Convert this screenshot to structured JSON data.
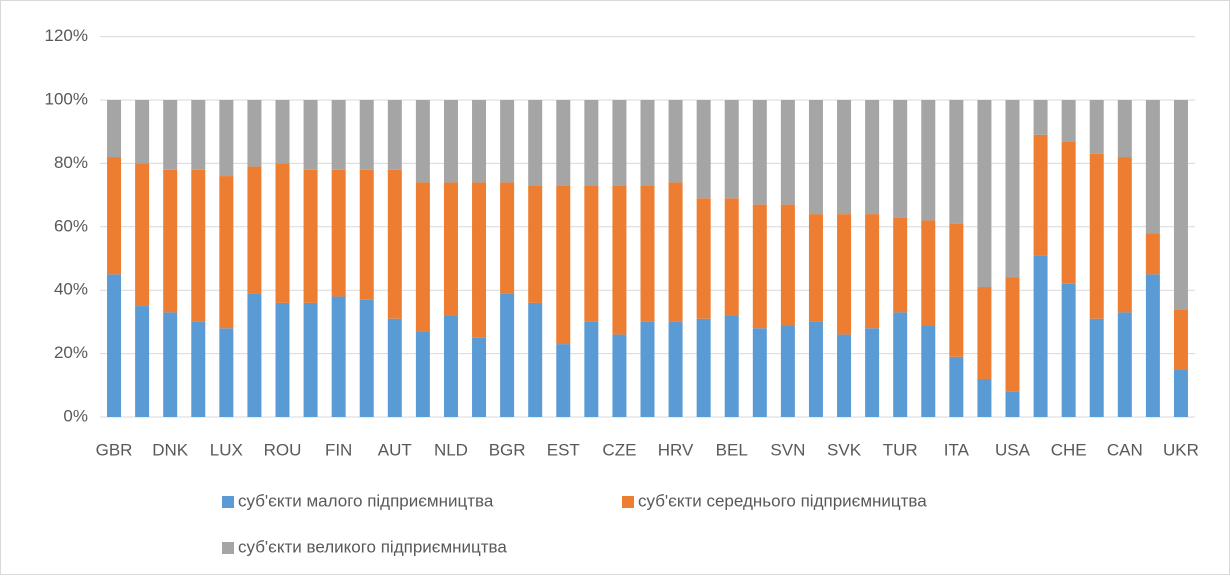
{
  "chart_data": {
    "type": "stacked_bar",
    "categories": [
      "GBR",
      null,
      "DNK",
      null,
      "LUX",
      null,
      "ROU",
      null,
      "FIN",
      null,
      "AUT",
      null,
      "NLD",
      null,
      "BGR",
      null,
      "EST",
      null,
      "CZE",
      null,
      "HRV",
      null,
      "BEL",
      null,
      "SVN",
      null,
      "SVK",
      null,
      "TUR",
      null,
      "ITA",
      null,
      "USA",
      null,
      "CHE",
      null,
      "CAN",
      null,
      "UKR"
    ],
    "series": [
      {
        "name": "суб'єкти малого підприємництва",
        "color": "#5b9bd5",
        "values": [
          45,
          35,
          33,
          30,
          28,
          39,
          36,
          36,
          38,
          37,
          31,
          27,
          32,
          25,
          39,
          36,
          23,
          30,
          26,
          30,
          30,
          31,
          32,
          28,
          29,
          30,
          26,
          28,
          33,
          29,
          19,
          12,
          8,
          51,
          42,
          31,
          33,
          45,
          15
        ]
      },
      {
        "name": "суб'єкти середнього підприємництва",
        "color": "#ed7d31",
        "values": [
          37,
          45,
          45,
          48,
          48,
          40,
          44,
          42,
          40,
          41,
          47,
          47,
          42,
          49,
          35,
          37,
          50,
          43,
          47,
          43,
          44,
          38,
          37,
          39,
          38,
          34,
          38,
          36,
          30,
          33,
          42,
          29,
          36,
          38,
          45,
          52,
          49,
          13,
          19
        ]
      },
      {
        "name": "суб'єкти великого підприємництва",
        "color": "#a5a5a5",
        "values": [
          18,
          20,
          22,
          22,
          24,
          21,
          20,
          22,
          22,
          22,
          22,
          26,
          26,
          26,
          26,
          27,
          27,
          27,
          27,
          27,
          26,
          31,
          31,
          33,
          33,
          36,
          36,
          36,
          37,
          38,
          39,
          59,
          56,
          11,
          13,
          17,
          18,
          42,
          66
        ]
      }
    ],
    "ylim": [
      0,
      120
    ],
    "yticks": [
      {
        "value": 0,
        "label": "0%"
      },
      {
        "value": 20,
        "label": "20%"
      },
      {
        "value": 40,
        "label": "40%"
      },
      {
        "value": 60,
        "label": "60%"
      },
      {
        "value": 80,
        "label": "80%"
      },
      {
        "value": 100,
        "label": "100%"
      },
      {
        "value": 120,
        "label": "120%"
      }
    ],
    "grid": true,
    "legend": "bottom"
  }
}
